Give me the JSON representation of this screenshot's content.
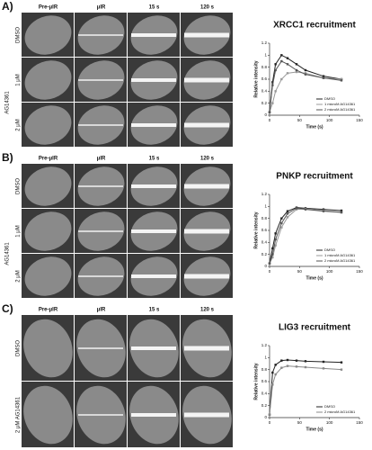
{
  "panels": [
    {
      "label": "A)",
      "columns": [
        "Pre-μIR",
        "μIR",
        "15 s",
        "120 s"
      ],
      "rows": [
        "DMSO",
        "1 μM",
        "2 μM"
      ],
      "group": "AG14361"
    },
    {
      "label": "B)",
      "columns": [
        "Pre-μIR",
        "μIR",
        "15 s",
        "120 s"
      ],
      "rows": [
        "DMSO",
        "1 μM",
        "2 μM"
      ],
      "group": "AG14361"
    },
    {
      "label": "C)",
      "columns": [
        "Pre-μIR",
        "μIR",
        "15 s",
        "120 s"
      ],
      "rows": [
        "DMSO",
        "2 μM AG14361"
      ]
    }
  ],
  "chart_data": [
    {
      "type": "line",
      "title": "XRCC1 recruitment",
      "xlabel": "Time (s)",
      "ylabel": "Relative intensity",
      "x": [
        0,
        5,
        10,
        20,
        30,
        45,
        60,
        90,
        120
      ],
      "series": [
        {
          "name": "DMSO",
          "color": "#222222",
          "values": [
            0.05,
            0.55,
            0.85,
            1.0,
            0.95,
            0.85,
            0.75,
            0.65,
            0.6
          ]
        },
        {
          "name": "1 microM AG14361",
          "color": "#999999",
          "values": [
            0.05,
            0.2,
            0.4,
            0.6,
            0.7,
            0.72,
            0.7,
            0.62,
            0.6
          ]
        },
        {
          "name": "2 microM AG14361",
          "color": "#555555",
          "values": [
            0.05,
            0.5,
            0.75,
            0.9,
            0.85,
            0.75,
            0.68,
            0.62,
            0.58
          ]
        }
      ],
      "xlim": [
        0,
        150
      ],
      "ylim": [
        0,
        1.2
      ],
      "xticks": [
        0,
        50,
        100,
        150
      ],
      "yticks": [
        0,
        0.2,
        0.4,
        0.6,
        0.8,
        1,
        1.2
      ],
      "legend": "lower right"
    },
    {
      "type": "line",
      "title": "PNKP recruitment",
      "xlabel": "Time (s)",
      "ylabel": "Relative intensity",
      "x": [
        0,
        5,
        10,
        20,
        30,
        45,
        60,
        90,
        120
      ],
      "series": [
        {
          "name": "DMSO",
          "color": "#222222",
          "values": [
            0.05,
            0.3,
            0.55,
            0.8,
            0.92,
            0.98,
            0.97,
            0.95,
            0.93
          ]
        },
        {
          "name": "1 microM AG14361",
          "color": "#999999",
          "values": [
            0.05,
            0.15,
            0.35,
            0.65,
            0.82,
            0.95,
            0.96,
            0.93,
            0.9
          ]
        },
        {
          "name": "2 microM AG14361",
          "color": "#555555",
          "values": [
            0.05,
            0.2,
            0.45,
            0.72,
            0.88,
            0.97,
            0.95,
            0.92,
            0.9
          ]
        }
      ],
      "xlim": [
        0,
        150
      ],
      "ylim": [
        0,
        1.2
      ],
      "xticks": [
        0,
        50,
        100,
        150
      ],
      "yticks": [
        0,
        0.2,
        0.4,
        0.6,
        0.8,
        1,
        1.2
      ],
      "legend": "lower right"
    },
    {
      "type": "line",
      "title": "LIG3 recruitment",
      "xlabel": "Time (s)",
      "ylabel": "Relative intensity",
      "x": [
        0,
        5,
        10,
        20,
        30,
        45,
        60,
        90,
        120
      ],
      "series": [
        {
          "name": "DMSO",
          "color": "#222222",
          "values": [
            0.05,
            0.75,
            0.88,
            0.95,
            0.96,
            0.95,
            0.94,
            0.93,
            0.92
          ]
        },
        {
          "name": "2 microM AG14361",
          "color": "#888888",
          "values": [
            0.05,
            0.55,
            0.72,
            0.83,
            0.86,
            0.85,
            0.84,
            0.82,
            0.8
          ]
        }
      ],
      "xlim": [
        0,
        150
      ],
      "ylim": [
        0,
        1.2
      ],
      "xticks": [
        0,
        50,
        100,
        150
      ],
      "yticks": [
        0,
        0.2,
        0.4,
        0.6,
        0.8,
        1,
        1.2
      ],
      "legend": "lower right"
    }
  ]
}
